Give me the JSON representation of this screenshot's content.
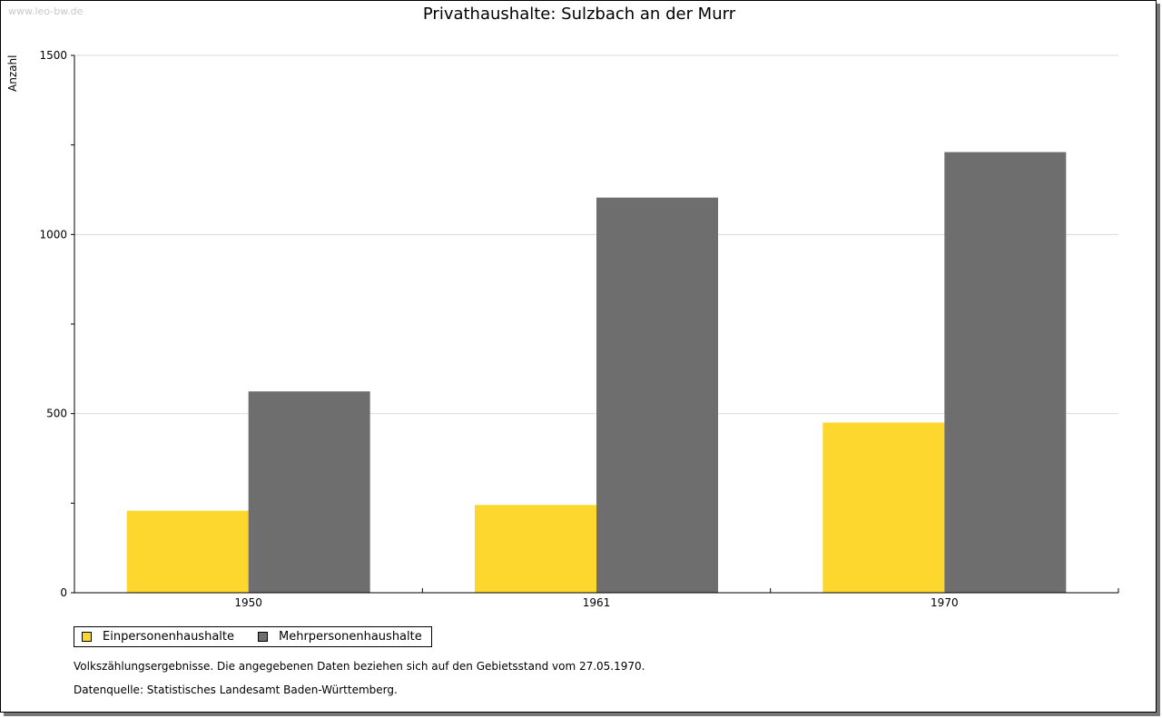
{
  "watermark": "www.leo-bw.de",
  "notes": {
    "line1": "Volkszählungsergebnisse. Die angegebenen Daten beziehen sich auf den Gebietsstand vom 27.05.1970.",
    "line2": "Datenquelle: Statistisches Landesamt Baden-Württemberg."
  },
  "chart_data": {
    "type": "bar",
    "title": "Privathaushalte: Sulzbach an der Murr",
    "ylabel": "Anzahl",
    "xlabel": "",
    "categories": [
      "1950",
      "1961",
      "1970"
    ],
    "ylim": [
      0,
      1500
    ],
    "yticks": [
      0,
      500,
      1000,
      1500
    ],
    "grid": true,
    "legend_position": "bottom-left",
    "series": [
      {
        "name": "Einpersonenhaushalte",
        "color": "#fdd72e",
        "values": [
          229,
          245,
          475
        ]
      },
      {
        "name": "Mehrpersonenhaushalte",
        "color": "#6e6e6e",
        "values": [
          562,
          1103,
          1230
        ]
      }
    ]
  }
}
